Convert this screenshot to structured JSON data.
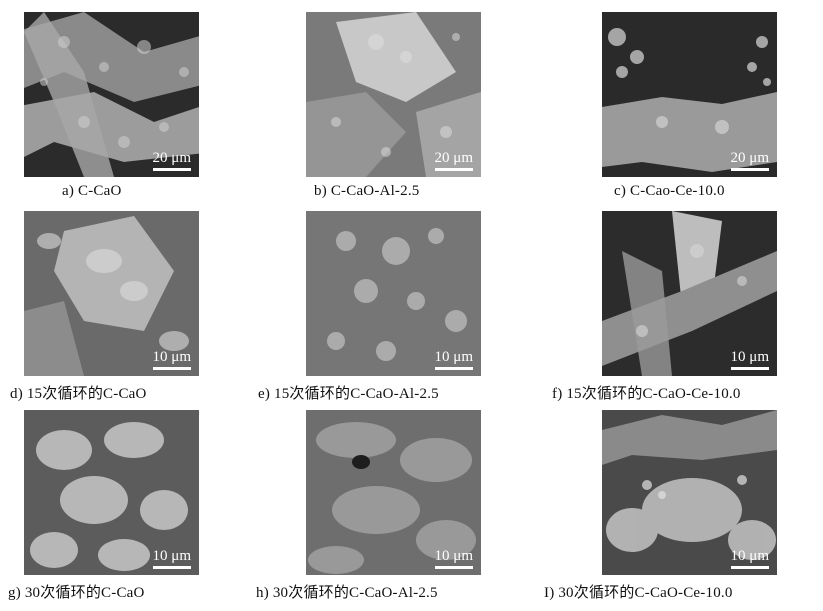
{
  "panels": [
    {
      "caption": "a) C-CaO",
      "scale": "20 μm"
    },
    {
      "caption": "b) C-CaO-Al-2.5",
      "scale": "20 μm"
    },
    {
      "caption": "c) C-Cao-Ce-10.0",
      "scale": "20 μm"
    },
    {
      "caption": "d) 15次循环的C-CaO",
      "scale": "10 μm"
    },
    {
      "caption": "e) 15次循环的C-CaO-Al-2.5",
      "scale": "10 μm"
    },
    {
      "caption": "f) 15次循环的C-CaO-Ce-10.0",
      "scale": "10 μm"
    },
    {
      "caption": "g) 30次循环的C-CaO",
      "scale": "10 μm"
    },
    {
      "caption": "h) 30次循环的C-CaO-Al-2.5",
      "scale": "10 μm"
    },
    {
      "caption": "I) 30次循环的C-CaO-Ce-10.0",
      "scale": "10 μm"
    }
  ]
}
